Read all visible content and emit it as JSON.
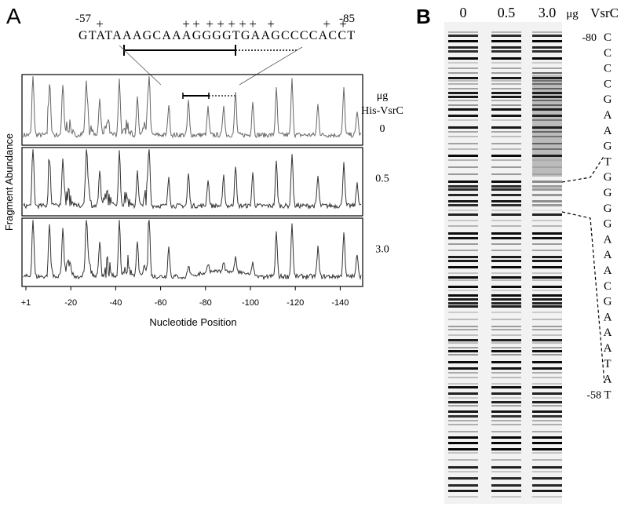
{
  "panel_a": {
    "label": "A",
    "start_position": "-57",
    "end_position": "-85",
    "plus_marks": [
      "+",
      "+",
      "+",
      "+",
      "+",
      "+",
      "+",
      "+",
      "+",
      "+",
      "+"
    ],
    "sequence": "GTATAAAGCAAAGGGGTGAAGCCCCACCT",
    "unit": "μg",
    "protein": "His-VsrC",
    "doses": [
      "0",
      "0.5",
      "3.0"
    ],
    "y_axis_label": "Fragment Abundance",
    "x_ticks": [
      "+1",
      "-20",
      "-40",
      "-60",
      "-80",
      "-100",
      "-120",
      "-140"
    ],
    "x_axis_label": "Nucleotide Position"
  },
  "panel_b": {
    "label": "B",
    "lanes": [
      "0",
      "0.5",
      "3.0"
    ],
    "unit": "μg",
    "protein": "VsrC",
    "top_position": "-80",
    "bottom_position": "-58",
    "bases": [
      "C",
      "C",
      "C",
      "C",
      "G",
      "A",
      "A",
      "G",
      "T",
      "G",
      "G",
      "G",
      "G",
      "A",
      "A",
      "A",
      "C",
      "G",
      "A",
      "A",
      "A",
      "T",
      "A",
      "T"
    ]
  }
}
